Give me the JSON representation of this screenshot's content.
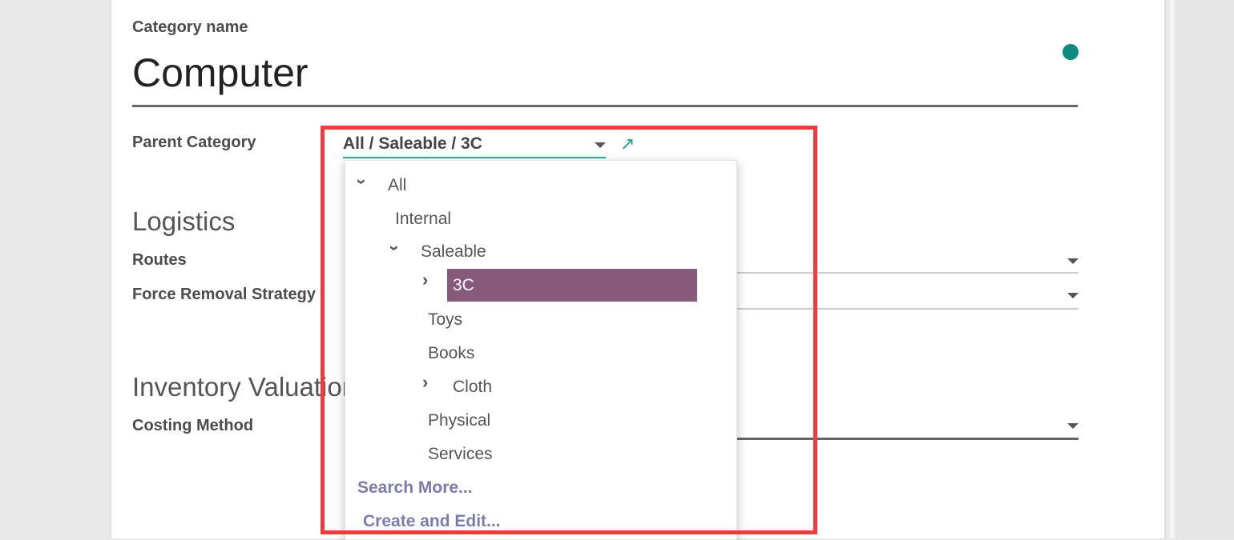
{
  "form": {
    "name_label": "Category name",
    "name_value": "Computer",
    "parent_label": "Parent Category",
    "parent_value": "All / Saleable / 3C",
    "logistics_heading": "Logistics",
    "routes_label": "Routes",
    "removal_label": "Force Removal Strategy",
    "valuation_heading": "Inventory Valuation",
    "costing_label": "Costing Method"
  },
  "dropdown": {
    "items": [
      {
        "label": "All",
        "expander": "chevron-down"
      },
      {
        "label": "Internal"
      },
      {
        "label": "Saleable",
        "expander": "chevron-down"
      },
      {
        "label": "3C",
        "expander": "chevron-right",
        "selected": true
      },
      {
        "label": "Toys"
      },
      {
        "label": "Books"
      },
      {
        "label": "Cloth",
        "expander": "chevron-right"
      },
      {
        "label": "Physical"
      },
      {
        "label": "Services"
      }
    ],
    "search_more": "Search More...",
    "create_edit": "Create and Edit..."
  },
  "colors": {
    "accent": "#21b0a0",
    "selected": "#875a7b",
    "link": "#7c7bad",
    "highlight_box": "#ee3b3b"
  }
}
